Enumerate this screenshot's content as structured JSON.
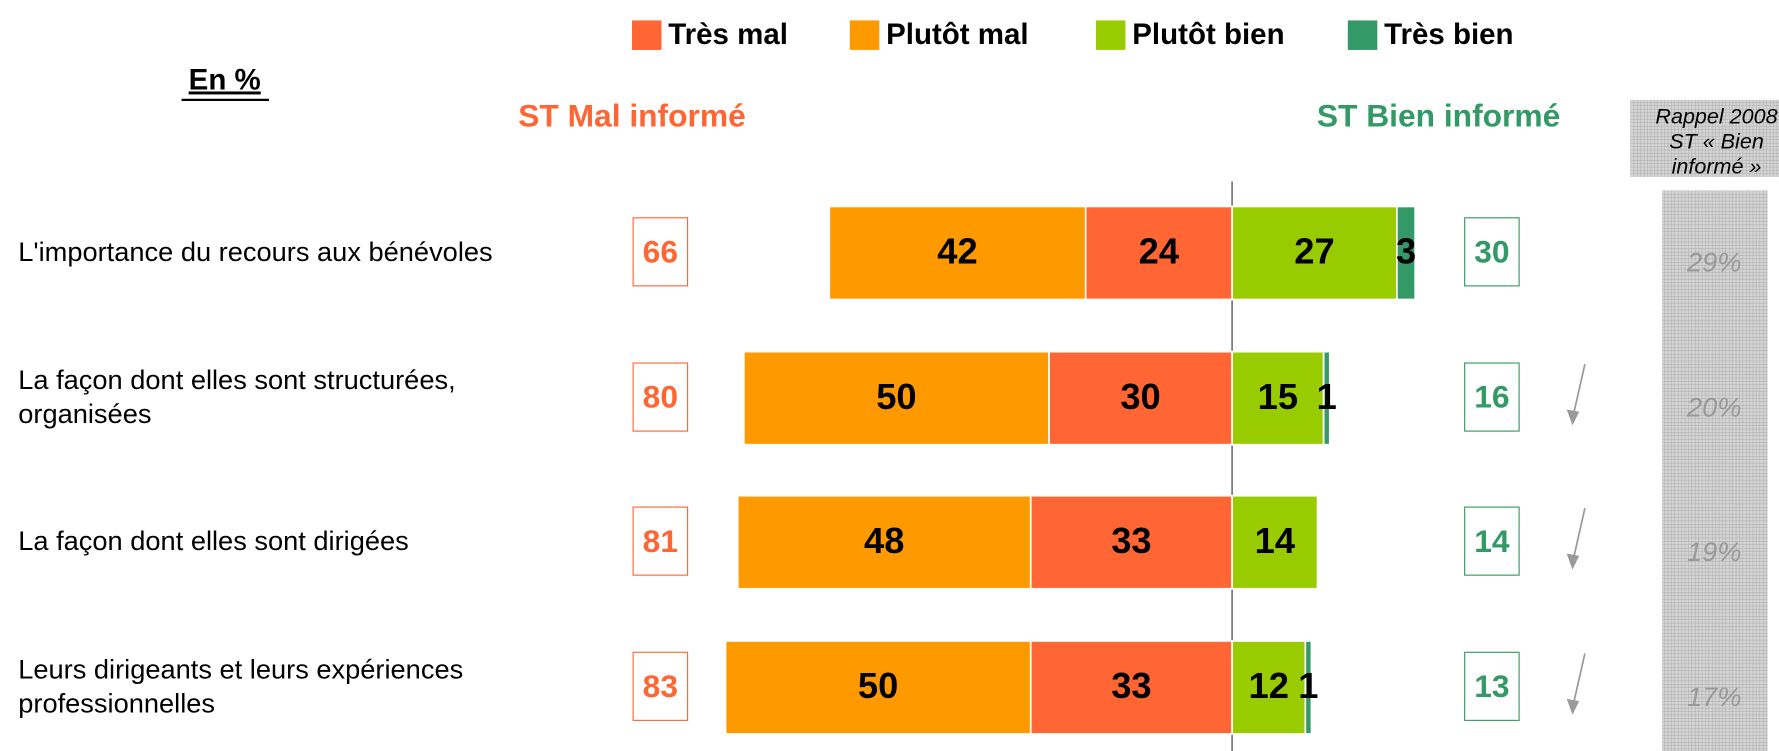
{
  "chart_data": {
    "type": "diverging-bar",
    "subtitle": "En %",
    "left_header": "ST Mal informé",
    "right_header": "ST Bien informé",
    "recall_header": [
      "Rappel 2008",
      "ST « Bien",
      "informé »"
    ],
    "categories": [
      "L'importance du recours aux bénévoles",
      "La façon dont elles sont structurées, organisées",
      "La façon dont elles sont dirigées",
      "Leurs dirigeants et leurs expériences professionnelles"
    ],
    "series": [
      {
        "name": "Très mal",
        "color": "#ff6633",
        "side": "left",
        "values": [
          24,
          30,
          33,
          33
        ]
      },
      {
        "name": "Plutôt mal",
        "color": "#ff9900",
        "side": "left",
        "values": [
          42,
          50,
          48,
          50
        ]
      },
      {
        "name": "Plutôt bien",
        "color": "#99cc00",
        "side": "right",
        "values": [
          27,
          15,
          14,
          12
        ]
      },
      {
        "name": "Très bien",
        "color": "#339966",
        "side": "right",
        "values": [
          3,
          1,
          null,
          1
        ]
      }
    ],
    "left_totals": [
      66,
      80,
      81,
      83
    ],
    "right_totals": [
      30,
      16,
      14,
      13
    ],
    "recall": {
      "values": [
        29,
        20,
        19,
        17
      ],
      "value_labels": [
        "29%",
        "20%",
        "19%",
        "17%"
      ]
    },
    "trend": [
      null,
      "down",
      "down",
      "down"
    ],
    "left_color": "#ff6633",
    "right_color": "#339966"
  }
}
